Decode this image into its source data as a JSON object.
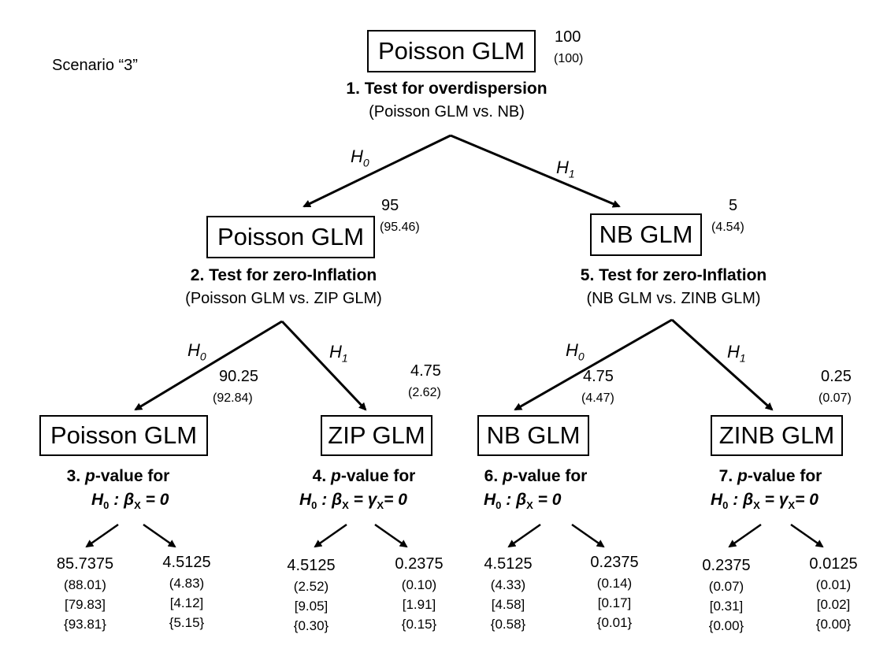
{
  "scenario": "Scenario “3”",
  "root": {
    "box": "Poisson GLM",
    "count": "100",
    "count_paren": "(100)",
    "test": "1.  Test for overdispersion",
    "compare": "(Poisson GLM vs. NB)"
  },
  "branch_left": {
    "edge_label": "H",
    "edge_sub": "0",
    "box": "Poisson GLM",
    "count": "95",
    "count_paren": "(95.46)",
    "test": "2. Test for zero-Inflation",
    "compare": "(Poisson GLM vs. ZIP GLM)"
  },
  "branch_right": {
    "edge_label": "H",
    "edge_sub": "1",
    "box": "NB GLM",
    "count": "5",
    "count_paren": "(4.54)",
    "test": "5. Test for zero-Inflation",
    "compare": "(NB GLM vs. ZINB GLM)"
  },
  "models": [
    {
      "box": "Poisson GLM",
      "edge_label": "H",
      "edge_sub": "0",
      "count": "90.25",
      "count_paren": "(92.84)",
      "pv_num": "3.",
      "pv_word": "p",
      "pv_rest": "-value for",
      "hyp_H": "H",
      "hyp_H_sub": "0",
      "hyp_sep": " : ",
      "hyp_beta": "β",
      "hyp_beta_sub": "X",
      "hyp_mid": "",
      "hyp_gamma": "",
      "hyp_gamma_sub": "",
      "hyp_end": " = 0",
      "leaf_left": {
        "v": "85.7375",
        "a": "(88.01)",
        "b": "[79.83]",
        "c": "{93.81}"
      },
      "leaf_right": {
        "v": "4.5125",
        "a": "(4.83)",
        "b": "[4.12]",
        "c": "{5.15}"
      }
    },
    {
      "box": "ZIP GLM",
      "edge_label": "H",
      "edge_sub": "1",
      "count": "4.75",
      "count_paren": "(2.62)",
      "pv_num": "4.",
      "pv_word": "p",
      "pv_rest": "-value for",
      "hyp_H": "H",
      "hyp_H_sub": "0",
      "hyp_sep": " : ",
      "hyp_beta": "β",
      "hyp_beta_sub": "X",
      "hyp_mid": " = ",
      "hyp_gamma": "γ",
      "hyp_gamma_sub": "X",
      "hyp_end": "= 0",
      "leaf_left": {
        "v": "4.5125",
        "a": "(2.52)",
        "b": "[9.05]",
        "c": "{0.30}"
      },
      "leaf_right": {
        "v": "0.2375",
        "a": "(0.10)",
        "b": "[1.91]",
        "c": "{0.15}"
      }
    },
    {
      "box": "NB GLM",
      "edge_label": "H",
      "edge_sub": "0",
      "count": "4.75",
      "count_paren": "(4.47)",
      "pv_num": "6.",
      "pv_word": "p",
      "pv_rest": "-value for",
      "hyp_H": "H",
      "hyp_H_sub": "0",
      "hyp_sep": " : ",
      "hyp_beta": "β",
      "hyp_beta_sub": "X",
      "hyp_mid": "",
      "hyp_gamma": "",
      "hyp_gamma_sub": "",
      "hyp_end": " = 0",
      "leaf_left": {
        "v": "4.5125",
        "a": "(4.33)",
        "b": "[4.58]",
        "c": "{0.58}"
      },
      "leaf_right": {
        "v": "0.2375",
        "a": "(0.14)",
        "b": "[0.17]",
        "c": "{0.01}"
      }
    },
    {
      "box": "ZINB GLM",
      "edge_label": "H",
      "edge_sub": "1",
      "count": "0.25",
      "count_paren": "(0.07)",
      "pv_num": "7.",
      "pv_word": "p",
      "pv_rest": "-value for",
      "hyp_H": "H",
      "hyp_H_sub": "0",
      "hyp_sep": " : ",
      "hyp_beta": "β",
      "hyp_beta_sub": "X",
      "hyp_mid": " = ",
      "hyp_gamma": "γ",
      "hyp_gamma_sub": "X",
      "hyp_end": "= 0",
      "leaf_left": {
        "v": "0.2375",
        "a": "(0.07)",
        "b": "[0.31]",
        "c": "{0.00}"
      },
      "leaf_right": {
        "v": "0.0125",
        "a": "(0.01)",
        "b": "[0.02]",
        "c": "{0.00}"
      }
    }
  ]
}
